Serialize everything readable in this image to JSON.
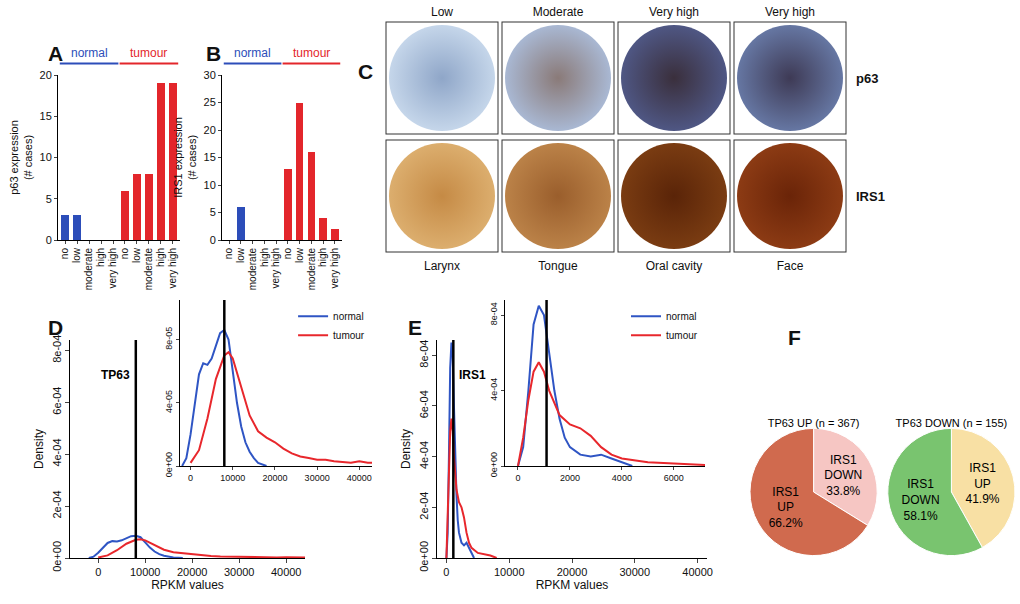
{
  "chart_data": [
    {
      "type": "bar",
      "panel": "A",
      "y_label": [
        "p63 expression",
        "(# cases)"
      ],
      "ylim": [
        0,
        20
      ],
      "yticks": [
        0,
        5,
        10,
        15,
        20
      ],
      "grid": false,
      "groups": [
        {
          "name": "normal",
          "color": "#2c4db9",
          "categories": [
            "no",
            "low",
            "moderate",
            "high",
            "very high"
          ],
          "values": [
            3,
            3,
            0,
            0,
            0
          ]
        },
        {
          "name": "tumour",
          "color": "#e3262b",
          "categories": [
            "no",
            "low",
            "moderate",
            "high",
            "very high"
          ],
          "values": [
            6,
            8,
            8,
            19,
            19
          ]
        }
      ]
    },
    {
      "type": "bar",
      "panel": "B",
      "y_label": [
        "IRS1 expression",
        "(# cases)"
      ],
      "ylim": [
        0,
        30
      ],
      "yticks": [
        0,
        5,
        10,
        15,
        20,
        25,
        30
      ],
      "grid": false,
      "groups": [
        {
          "name": "normal",
          "color": "#2c4db9",
          "categories": [
            "no",
            "low",
            "moderate",
            "high",
            "very high"
          ],
          "values": [
            0,
            6,
            0,
            0,
            0
          ]
        },
        {
          "name": "tumour",
          "color": "#e3262b",
          "categories": [
            "no",
            "low",
            "moderate",
            "high",
            "very high"
          ],
          "values": [
            13,
            25,
            16,
            4,
            2
          ]
        }
      ]
    },
    {
      "type": "image_grid",
      "panel": "C",
      "column_labels": [
        "Low",
        "Moderate",
        "Very high",
        "Very high"
      ],
      "row_labels": [
        "p63",
        "IRS1"
      ],
      "site_labels": [
        "Larynx",
        "Tongue",
        "Oral cavity",
        "Face"
      ]
    },
    {
      "type": "line",
      "panel": "D",
      "title": "TP63",
      "x_label": "RPKM values",
      "y_label": "Density",
      "xlim": [
        -6000,
        44000
      ],
      "ylim": [
        0,
        0.00084
      ],
      "xticks": [
        0,
        10000,
        20000,
        30000,
        40000
      ],
      "yticks": [
        {
          "value": 0,
          "label": "0e+00"
        },
        {
          "value": 0.0002,
          "label": "2e-04"
        },
        {
          "value": 0.0004,
          "label": "4e-04"
        },
        {
          "value": 0.0006,
          "label": "6e-04"
        },
        {
          "value": 0.0008,
          "label": "8e-04"
        }
      ],
      "reference_line": 8000,
      "grid": false,
      "series": [
        {
          "name": "normal",
          "color": "#2f55c4",
          "x": [
            -2000,
            -1000,
            0,
            1000,
            2000,
            3000,
            4000,
            5000,
            6000,
            7000,
            8000,
            9000,
            10000,
            11000,
            12000,
            13000,
            14000,
            15000,
            16000,
            17000,
            18000
          ],
          "values": [
            0,
            5e-06,
            2e-05,
            4e-05,
            5.8e-05,
            6.5e-05,
            6.4e-05,
            6.8e-05,
            7.6e-05,
            8.4e-05,
            8.6e-05,
            8e-05,
            6e-05,
            4e-05,
            2.5e-05,
            1.5e-05,
            9e-06,
            5e-06,
            2e-06,
            1e-06,
            0
          ]
        },
        {
          "name": "tumour",
          "color": "#e8272c",
          "x": [
            0,
            2000,
            4000,
            6000,
            8000,
            9000,
            10000,
            12000,
            14000,
            16000,
            18000,
            20000,
            22000,
            24000,
            26000,
            28000,
            30000,
            32000,
            34000,
            36000,
            38000,
            40000,
            42000,
            44000,
            46000
          ],
          "values": [
            2e-06,
            1e-05,
            3e-05,
            5.5e-05,
            7e-05,
            7.2e-05,
            6.8e-05,
            5e-05,
            3.2e-05,
            2.2e-05,
            1.8e-05,
            1.5e-05,
            1.1e-05,
            8e-06,
            6e-06,
            5e-06,
            4e-06,
            4e-06,
            3e-06,
            2.5e-06,
            2e-06,
            3e-06,
            2e-06,
            2e-06,
            1e-06
          ]
        }
      ],
      "inset": {
        "xlim": [
          -2500,
          43000
        ],
        "ylim": [
          0,
          0.000105
        ],
        "xticks": [
          0,
          10000,
          20000,
          30000,
          40000
        ],
        "yticks": [
          {
            "value": 0,
            "label": "0e+00"
          },
          {
            "value": 4e-05,
            "label": "4e-05"
          },
          {
            "value": 8e-05,
            "label": "8e-05"
          }
        ],
        "legend": "top right"
      }
    },
    {
      "type": "line",
      "panel": "E",
      "title": "IRS1",
      "x_label": "RPKM values",
      "y_label": "Density",
      "xlim": [
        -1500,
        41500
      ],
      "ylim": [
        0,
        0.00086
      ],
      "xticks": [
        0,
        10000,
        20000,
        30000,
        40000
      ],
      "yticks": [
        {
          "value": 0,
          "label": "0e+00"
        },
        {
          "value": 0.0002,
          "label": "2e-04"
        },
        {
          "value": 0.0004,
          "label": "4e-04"
        },
        {
          "value": 0.0006,
          "label": "6e-04"
        },
        {
          "value": 0.0008,
          "label": "8e-04"
        }
      ],
      "reference_line": 1100,
      "grid": false,
      "series": [
        {
          "name": "normal",
          "color": "#2f55c4",
          "x": [
            0,
            200,
            400,
            600,
            800,
            1000,
            1200,
            1400,
            1600,
            1800,
            2000,
            2400,
            2800,
            3200,
            3600,
            4000,
            4400
          ],
          "values": [
            0,
            0.0001,
            0.0004,
            0.00075,
            0.00085,
            0.0008,
            0.0006,
            0.0004,
            0.00025,
            0.00015,
            0.0001,
            6e-05,
            5e-05,
            6e-05,
            4e-05,
            2e-05,
            0
          ]
        },
        {
          "name": "tumour",
          "color": "#e8272c",
          "x": [
            0,
            200,
            400,
            600,
            800,
            1000,
            1200,
            1600,
            2000,
            2400,
            2800,
            3200,
            3600,
            4000,
            5000,
            6000,
            7000,
            8000
          ],
          "values": [
            0,
            0.00015,
            0.00035,
            0.0005,
            0.00055,
            0.0005,
            0.0004,
            0.00027,
            0.00022,
            0.0002,
            0.00016,
            0.0001,
            6e-05,
            4e-05,
            2e-05,
            1.5e-05,
            1e-05,
            0
          ]
        }
      ],
      "inset": {
        "xlim": [
          -500,
          7200
        ],
        "ylim": [
          0,
          0.00088
        ],
        "xticks": [
          0,
          2000,
          4000,
          6000
        ],
        "yticks": [
          {
            "value": 0,
            "label": "0e+00"
          },
          {
            "value": 0.0004,
            "label": "4e-04"
          },
          {
            "value": 0.0008,
            "label": "8e-04"
          }
        ],
        "legend": "top right"
      }
    },
    {
      "type": "pie",
      "panel": "F",
      "pies": [
        {
          "title": "TP63 UP (n = 367)",
          "labels": [
            "IRS1 DOWN",
            "IRS1 UP"
          ],
          "values": [
            33.8,
            66.2
          ],
          "value_labels": [
            "33.8%",
            "66.2%"
          ],
          "colors": [
            "#f6c6c3",
            "#d06a4e"
          ]
        },
        {
          "title": "TP63 DOWN (n = 155)",
          "labels": [
            "IRS1 UP",
            "IRS1 DOWN"
          ],
          "values": [
            41.9,
            58.1
          ],
          "value_labels": [
            "41.9%",
            "58.1%"
          ],
          "colors": [
            "#f8e0a4",
            "#79c46f"
          ]
        }
      ]
    }
  ]
}
